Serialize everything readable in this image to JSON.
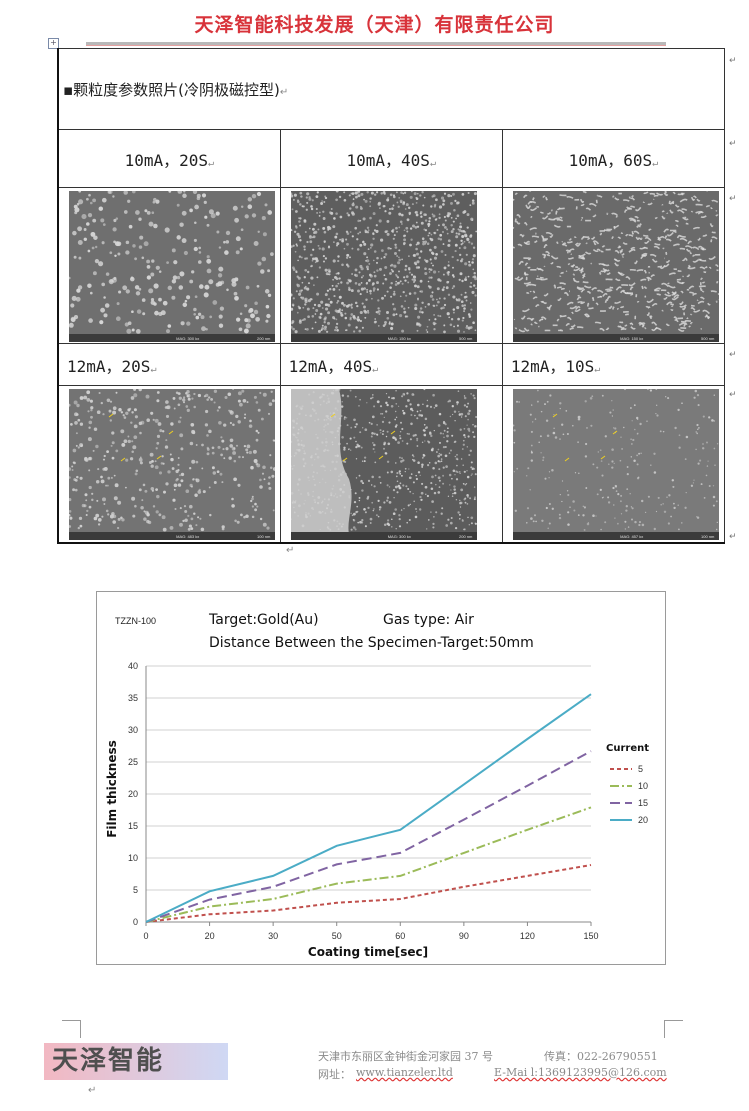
{
  "header": {
    "company_name": "天泽智能科技发展（天津）有限责任公司"
  },
  "table": {
    "title": "▪颗粒度参数照片(冷阴极磁控型)",
    "top_row_labels": [
      "10mA，20S",
      "10mA，40S",
      "10mA，60S"
    ],
    "top_row_scalebars": [
      {
        "mag": "MAG: 300 kx",
        "scale": "200 nm"
      },
      {
        "mag": "MAG: 150 kx",
        "scale": "500 nm"
      },
      {
        "mag": "MAG: 150 kx",
        "scale": "500 nm"
      }
    ],
    "bottom_row_labels": [
      "12mA，20S",
      "12mA，40S",
      "12mA，10S"
    ],
    "bottom_row_scalebars": [
      {
        "mag": "MAG: 483 kx",
        "scale": "100 nm"
      },
      {
        "mag": "MAG: 300 kx",
        "scale": "200 nm"
      },
      {
        "mag": "MAG: 457 kx",
        "scale": "100 nm"
      }
    ]
  },
  "chart_data": {
    "type": "line",
    "model": "TZZN-100",
    "title_line1_left": "Target:Gold(Au)",
    "title_line1_right": "Gas  type:  Air",
    "title_line2": "Distance Between the Specimen-Target:50mm",
    "xlabel": "Coating time[sec]",
    "ylabel": "Film thickness",
    "categories": [
      "0",
      "20",
      "30",
      "50",
      "60",
      "90",
      "120",
      "150"
    ],
    "y_ticks": [
      "0",
      "5",
      "10",
      "15",
      "20",
      "25",
      "30",
      "35",
      "40"
    ],
    "ylim": [
      0,
      40
    ],
    "grid": true,
    "legend_title": "Current",
    "legend_position": "right",
    "series": [
      {
        "name": "5",
        "values": [
          0,
          1.2,
          1.8,
          3.0,
          3.6,
          5.5,
          7.2,
          8.9
        ],
        "color": "#c0504d",
        "dash": "4,3"
      },
      {
        "name": "10",
        "values": [
          0,
          2.4,
          3.6,
          6.0,
          7.2,
          10.8,
          14.4,
          17.9
        ],
        "color": "#9bbb59",
        "dash": "9,3,2,3"
      },
      {
        "name": "15",
        "values": [
          0,
          3.5,
          5.5,
          9.0,
          10.8,
          16.0,
          21.3,
          26.7
        ],
        "color": "#8064a2",
        "dash": "10,5"
      },
      {
        "name": "20",
        "values": [
          0,
          4.8,
          7.2,
          11.9,
          14.4,
          21.5,
          28.6,
          35.6
        ],
        "color": "#4bacc6",
        "dash": ""
      }
    ]
  },
  "footer": {
    "logo_text": "天泽智能",
    "address": "天津市东丽区金钟街金河家园 37 号",
    "fax": "传真：022-26790551",
    "website_label": "网址：",
    "website": "www.tianzeler.ltd",
    "email": "E-Mai l:1369123995@126.com"
  }
}
